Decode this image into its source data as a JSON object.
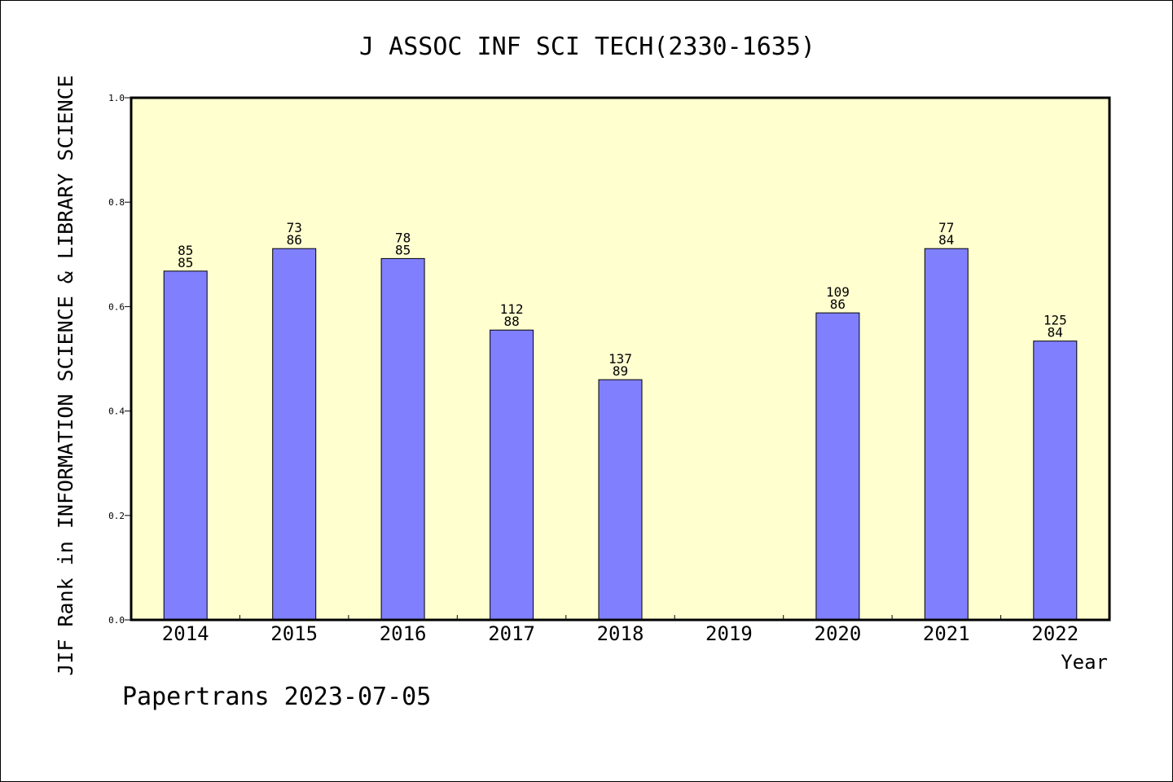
{
  "chart_data": {
    "type": "bar",
    "title": "J ASSOC INF SCI TECH(2330-1635)",
    "xlabel": "Year",
    "ylabel": "JIF Rank in INFORMATION SCIENCE & LIBRARY SCIENCE",
    "footer": "Papertrans 2023-07-05",
    "ylim": [
      0,
      1.0
    ],
    "yticks": [
      "0.0",
      "0.2",
      "0.4",
      "0.6",
      "0.8",
      "1.0"
    ],
    "categories": [
      "2014",
      "2015",
      "2016",
      "2017",
      "2018",
      "2019",
      "2020",
      "2021",
      "2022"
    ],
    "values": [
      0.668,
      0.711,
      0.692,
      0.555,
      0.46,
      null,
      0.588,
      0.711,
      0.534
    ],
    "bar_labels": [
      [
        "85",
        "85"
      ],
      [
        "73",
        "86"
      ],
      [
        "78",
        "85"
      ],
      [
        "112",
        "88"
      ],
      [
        "137",
        "89"
      ],
      null,
      [
        "109",
        "86"
      ],
      [
        "77",
        "84"
      ],
      [
        "125",
        "84"
      ]
    ],
    "grid": false,
    "colors": {
      "plot_background": "#ffffd0",
      "bar_fill": "#8080ff",
      "bar_stroke": "#000000",
      "axis": "#000000"
    }
  }
}
